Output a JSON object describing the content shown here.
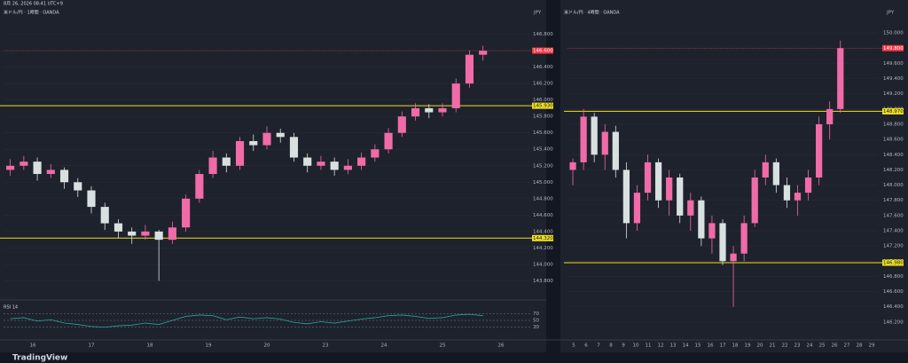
{
  "header": {
    "timestamp": "8月 26, 2026 08:41 UTC+9"
  },
  "footer": {
    "brand": "TradingView"
  },
  "panes": [
    {
      "title": "米ドル/円 · 1時間 · OANDA",
      "currency": "JPY",
      "ylim": [
        143.6,
        147.0
      ],
      "yticks": [
        {
          "value": 143.8,
          "label": "143.800"
        },
        {
          "value": 144.0,
          "label": "144.000"
        },
        {
          "value": 144.2,
          "label": "144.200"
        },
        {
          "value": 144.4,
          "label": "144.400"
        },
        {
          "value": 144.6,
          "label": "144.600"
        },
        {
          "value": 144.8,
          "label": "144.800"
        },
        {
          "value": 145.0,
          "label": "145.000"
        },
        {
          "value": 145.2,
          "label": "145.200"
        },
        {
          "value": 145.4,
          "label": "145.400"
        },
        {
          "value": 145.6,
          "label": "145.600"
        },
        {
          "value": 145.8,
          "label": "145.800"
        },
        {
          "value": 146.0,
          "label": "146.000"
        },
        {
          "value": 146.2,
          "label": "146.200"
        },
        {
          "value": 146.4,
          "label": "146.400"
        },
        {
          "value": 146.6,
          "label": "146.600"
        },
        {
          "value": 146.8,
          "label": "146.800"
        }
      ],
      "hlines": [
        {
          "value": 145.93,
          "label": "145.930"
        },
        {
          "value": 144.32,
          "label": "144.320"
        }
      ],
      "current": {
        "value": 146.6,
        "label": "146.600"
      },
      "candles": [
        [
          145.15,
          145.28,
          145.08,
          145.2
        ],
        [
          145.2,
          145.32,
          145.15,
          145.25
        ],
        [
          145.25,
          145.3,
          145.02,
          145.1
        ],
        [
          145.1,
          145.22,
          145.05,
          145.15
        ],
        [
          145.15,
          145.18,
          144.92,
          145.0
        ],
        [
          145.0,
          145.05,
          144.82,
          144.9
        ],
        [
          144.9,
          144.95,
          144.62,
          144.7
        ],
        [
          144.7,
          144.75,
          144.42,
          144.5
        ],
        [
          144.5,
          144.55,
          144.32,
          144.4
        ],
        [
          144.4,
          144.45,
          144.25,
          144.35
        ],
        [
          144.35,
          144.48,
          144.3,
          144.4
        ],
        [
          144.4,
          144.42,
          143.8,
          144.3
        ],
        [
          144.3,
          144.52,
          144.25,
          144.45
        ],
        [
          144.45,
          144.85,
          144.4,
          144.8
        ],
        [
          144.8,
          145.15,
          144.75,
          145.1
        ],
        [
          145.1,
          145.38,
          145.05,
          145.3
        ],
        [
          145.3,
          145.35,
          145.12,
          145.2
        ],
        [
          145.2,
          145.55,
          145.15,
          145.5
        ],
        [
          145.5,
          145.58,
          145.38,
          145.45
        ],
        [
          145.45,
          145.68,
          145.4,
          145.6
        ],
        [
          145.6,
          145.65,
          145.48,
          145.55
        ],
        [
          145.55,
          145.6,
          145.25,
          145.3
        ],
        [
          145.3,
          145.35,
          145.12,
          145.2
        ],
        [
          145.2,
          145.32,
          145.15,
          145.25
        ],
        [
          145.25,
          145.3,
          145.08,
          145.15
        ],
        [
          145.15,
          145.28,
          145.1,
          145.2
        ],
        [
          145.2,
          145.36,
          145.15,
          145.3
        ],
        [
          145.3,
          145.46,
          145.25,
          145.4
        ],
        [
          145.4,
          145.66,
          145.35,
          145.6
        ],
        [
          145.6,
          145.86,
          145.55,
          145.8
        ],
        [
          145.8,
          145.96,
          145.75,
          145.9
        ],
        [
          145.9,
          145.95,
          145.78,
          145.85
        ],
        [
          145.85,
          145.96,
          145.8,
          145.9
        ],
        [
          145.9,
          146.26,
          145.85,
          146.2
        ],
        [
          146.2,
          146.6,
          146.15,
          146.55
        ],
        [
          146.55,
          146.66,
          146.48,
          146.6
        ]
      ],
      "time_labels": [
        "16",
        "17",
        "18",
        "19",
        "20",
        "23",
        "24",
        "25",
        "26"
      ]
    },
    {
      "title": "米ドル/円 · 4時間 · OANDA",
      "currency": "JPY",
      "ylim": [
        146.0,
        150.2
      ],
      "yticks": [
        {
          "value": 146.2,
          "label": "146.200"
        },
        {
          "value": 146.4,
          "label": "146.400"
        },
        {
          "value": 146.6,
          "label": "146.600"
        },
        {
          "value": 146.8,
          "label": "146.800"
        },
        {
          "value": 147.0,
          "label": "147.000"
        },
        {
          "value": 147.2,
          "label": "147.200"
        },
        {
          "value": 147.4,
          "label": "147.400"
        },
        {
          "value": 147.6,
          "label": "147.600"
        },
        {
          "value": 147.8,
          "label": "147.800"
        },
        {
          "value": 148.0,
          "label": "148.000"
        },
        {
          "value": 148.2,
          "label": "148.200"
        },
        {
          "value": 148.4,
          "label": "148.400"
        },
        {
          "value": 148.6,
          "label": "148.600"
        },
        {
          "value": 148.8,
          "label": "148.800"
        },
        {
          "value": 149.0,
          "label": "149.000"
        },
        {
          "value": 149.2,
          "label": "149.200"
        },
        {
          "value": 149.4,
          "label": "149.400"
        },
        {
          "value": 149.6,
          "label": "149.600"
        },
        {
          "value": 149.8,
          "label": "149.800"
        },
        {
          "value": 150.0,
          "label": "150.000"
        }
      ],
      "hlines": [
        {
          "value": 148.97,
          "label": "148.970"
        },
        {
          "value": 146.98,
          "label": "146.980"
        }
      ],
      "current": {
        "value": 149.8,
        "label": "149.800"
      },
      "candles": [
        [
          148.2,
          148.35,
          148.0,
          148.3
        ],
        [
          148.3,
          149.0,
          148.2,
          148.9
        ],
        [
          148.9,
          148.95,
          148.3,
          148.4
        ],
        [
          148.4,
          148.8,
          148.2,
          148.7
        ],
        [
          148.7,
          148.78,
          148.1,
          148.2
        ],
        [
          148.2,
          148.3,
          147.3,
          147.5
        ],
        [
          147.5,
          148.0,
          147.4,
          147.9
        ],
        [
          147.9,
          148.4,
          147.8,
          148.3
        ],
        [
          148.3,
          148.35,
          147.7,
          147.8
        ],
        [
          147.8,
          148.2,
          147.6,
          148.1
        ],
        [
          148.1,
          148.15,
          147.5,
          147.6
        ],
        [
          147.6,
          147.9,
          147.4,
          147.8
        ],
        [
          147.8,
          147.85,
          147.2,
          147.3
        ],
        [
          147.3,
          147.6,
          147.1,
          147.5
        ],
        [
          147.5,
          147.55,
          146.95,
          147.0
        ],
        [
          147.0,
          147.2,
          146.4,
          147.1
        ],
        [
          147.1,
          147.6,
          147.0,
          147.5
        ],
        [
          147.5,
          148.2,
          147.45,
          148.1
        ],
        [
          148.1,
          148.4,
          148.0,
          148.3
        ],
        [
          148.3,
          148.35,
          147.9,
          148.0
        ],
        [
          148.0,
          148.1,
          147.7,
          147.8
        ],
        [
          147.8,
          148.0,
          147.6,
          147.9
        ],
        [
          147.9,
          148.2,
          147.8,
          148.1
        ],
        [
          148.1,
          148.9,
          148.0,
          148.8
        ],
        [
          148.8,
          149.1,
          148.6,
          149.0
        ],
        [
          149.0,
          149.9,
          148.95,
          149.8
        ]
      ],
      "time_labels": [
        "5",
        "6",
        "7",
        "8",
        "9",
        "10",
        "11",
        "12",
        "13",
        "14",
        "15",
        "16",
        "17",
        "18",
        "19",
        "20",
        "21",
        "22",
        "23",
        "24",
        "25",
        "26",
        "27",
        "28",
        "29"
      ]
    }
  ],
  "rsi": {
    "label": "RSI 14",
    "ylim": [
      0,
      100
    ],
    "yticks": [
      30,
      50,
      70
    ],
    "values": [
      55,
      58,
      48,
      52,
      42,
      38,
      32,
      30,
      34,
      36,
      42,
      38,
      50,
      62,
      66,
      64,
      52,
      60,
      55,
      58,
      54,
      44,
      40,
      46,
      42,
      48,
      54,
      58,
      64,
      66,
      62,
      56,
      58,
      66,
      68,
      64
    ]
  }
}
